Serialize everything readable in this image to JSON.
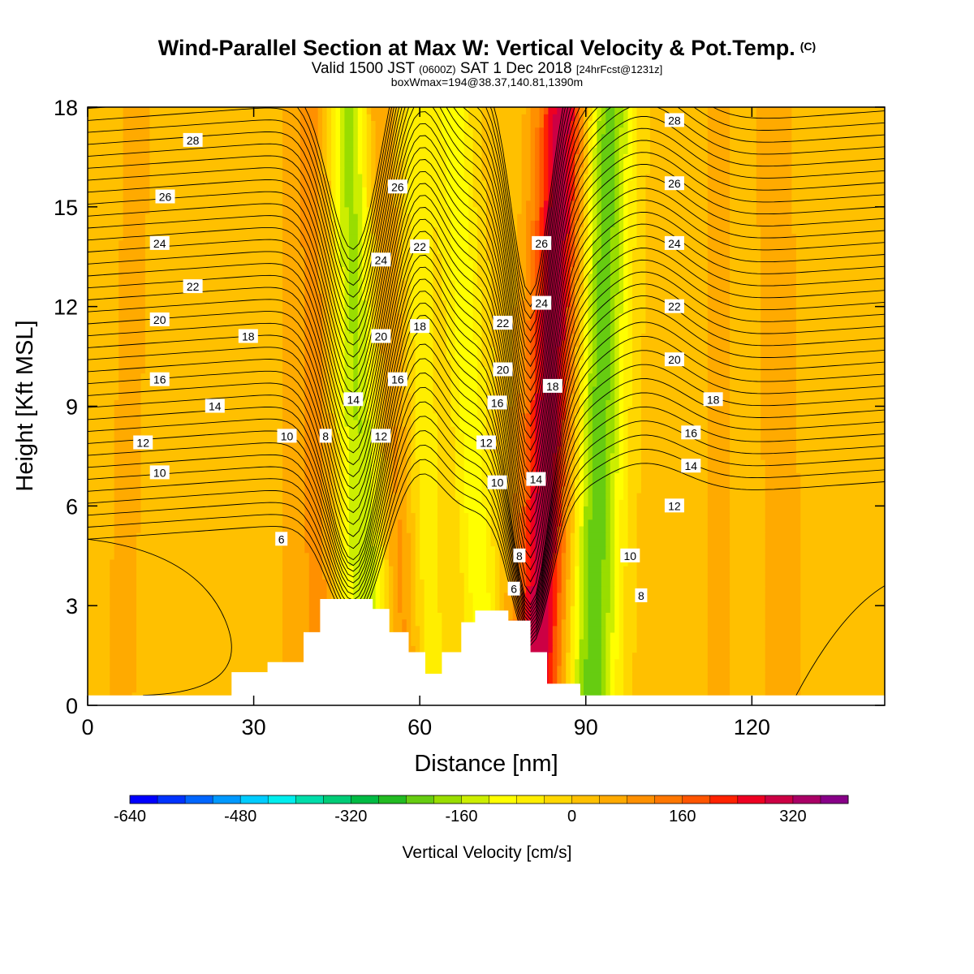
{
  "header": {
    "title": "Wind-Parallel Section at Max W: Vertical Velocity & Pot.Temp.",
    "title_mark": "(C)",
    "valid_prefix": "Valid 1500 JST",
    "valid_utc": "(0600Z)",
    "valid_date": "SAT 1 Dec 2018",
    "forecast": "[24hrFcst@1231z]",
    "box_info": "boxWmax=194@38.37,140.81,1390m"
  },
  "chart_data": {
    "type": "heatmap",
    "xlabel": "Distance [nm]",
    "ylabel": "Height [Kft MSL]",
    "xlim": [
      0,
      144
    ],
    "ylim": [
      0,
      18
    ],
    "xticks": [
      0,
      30,
      60,
      90,
      120
    ],
    "yticks": [
      0,
      3,
      6,
      9,
      12,
      15,
      18
    ],
    "grid": false,
    "colorbar": {
      "title": "Vertical Velocity [cm/s]",
      "placement": "bottom",
      "min": -640,
      "max": 400,
      "step": 40,
      "tick_labels": [
        -640,
        -480,
        -320,
        -160,
        0,
        160,
        320
      ],
      "colors": [
        "#0000ff",
        "#0033ff",
        "#0066ff",
        "#0099ff",
        "#00ccff",
        "#00eeee",
        "#00ddaa",
        "#00cc77",
        "#00bb44",
        "#22bb22",
        "#66cc11",
        "#99dd00",
        "#ccee00",
        "#ffff00",
        "#ffee00",
        "#ffd700",
        "#ffc000",
        "#ffaa00",
        "#ff9000",
        "#ff7700",
        "#ff5500",
        "#ff2200",
        "#ee0022",
        "#cc0044",
        "#aa0066",
        "#880088"
      ]
    },
    "vertical_velocity_bands": [
      {
        "base_x": 6,
        "top_x": 9,
        "w": 40
      },
      {
        "base_x": 38,
        "top_x": 38,
        "w": 40
      },
      {
        "base_x": 43,
        "top_x": 42,
        "w": 80
      },
      {
        "base_x": 47,
        "top_x": 46,
        "w": -60
      },
      {
        "base_x": 52,
        "top_x": 48,
        "w": -160
      },
      {
        "base_x": 57,
        "top_x": 52,
        "w": 120
      },
      {
        "base_x": 62,
        "top_x": 59,
        "w": -80
      },
      {
        "base_x": 72,
        "top_x": 66,
        "w": -120
      },
      {
        "base_x": 81,
        "top_x": 86,
        "w": 300
      },
      {
        "base_x": 91,
        "top_x": 94,
        "w": -240
      },
      {
        "base_x": 114,
        "top_x": 114,
        "w": 40
      },
      {
        "base_x": 126,
        "top_x": 124,
        "w": 60
      }
    ],
    "terrain_profile": [
      {
        "x": 0,
        "h": 0.3
      },
      {
        "x": 26,
        "h": 0.3
      },
      {
        "x": 26,
        "h": 1.0
      },
      {
        "x": 32.5,
        "h": 1.0
      },
      {
        "x": 32.5,
        "h": 1.3
      },
      {
        "x": 39,
        "h": 1.3
      },
      {
        "x": 39,
        "h": 2.2
      },
      {
        "x": 42,
        "h": 2.2
      },
      {
        "x": 42,
        "h": 3.2
      },
      {
        "x": 51.5,
        "h": 3.2
      },
      {
        "x": 51.5,
        "h": 2.9
      },
      {
        "x": 54.5,
        "h": 2.9
      },
      {
        "x": 54.5,
        "h": 2.2
      },
      {
        "x": 58,
        "h": 2.2
      },
      {
        "x": 58,
        "h": 1.6
      },
      {
        "x": 61,
        "h": 1.6
      },
      {
        "x": 61,
        "h": 0.95
      },
      {
        "x": 64,
        "h": 0.95
      },
      {
        "x": 64,
        "h": 1.6
      },
      {
        "x": 67.5,
        "h": 1.6
      },
      {
        "x": 67.5,
        "h": 2.5
      },
      {
        "x": 70,
        "h": 2.5
      },
      {
        "x": 70,
        "h": 2.85
      },
      {
        "x": 76,
        "h": 2.85
      },
      {
        "x": 76,
        "h": 2.55
      },
      {
        "x": 80,
        "h": 2.55
      },
      {
        "x": 80,
        "h": 1.6
      },
      {
        "x": 83,
        "h": 1.6
      },
      {
        "x": 83,
        "h": 0.65
      },
      {
        "x": 89,
        "h": 0.65
      },
      {
        "x": 89,
        "h": 0.3
      },
      {
        "x": 144,
        "h": 0.3
      }
    ],
    "theta_contour_labels": [
      {
        "x": 19,
        "y": 17.0,
        "text": "28"
      },
      {
        "x": 14,
        "y": 15.3,
        "text": "26"
      },
      {
        "x": 13,
        "y": 13.9,
        "text": "24"
      },
      {
        "x": 19,
        "y": 12.6,
        "text": "22"
      },
      {
        "x": 13,
        "y": 11.6,
        "text": "20"
      },
      {
        "x": 29,
        "y": 11.1,
        "text": "18"
      },
      {
        "x": 13,
        "y": 9.8,
        "text": "16"
      },
      {
        "x": 23,
        "y": 9.0,
        "text": "14"
      },
      {
        "x": 10,
        "y": 7.9,
        "text": "12"
      },
      {
        "x": 13,
        "y": 7.0,
        "text": "10"
      },
      {
        "x": 35,
        "y": 5.0,
        "text": "6"
      },
      {
        "x": 36,
        "y": 8.1,
        "text": "10"
      },
      {
        "x": 43,
        "y": 8.1,
        "text": "8"
      },
      {
        "x": 48,
        "y": 9.2,
        "text": "14"
      },
      {
        "x": 53,
        "y": 8.1,
        "text": "12"
      },
      {
        "x": 56,
        "y": 9.8,
        "text": "16"
      },
      {
        "x": 53,
        "y": 11.1,
        "text": "20"
      },
      {
        "x": 60,
        "y": 11.4,
        "text": "18"
      },
      {
        "x": 53,
        "y": 13.4,
        "text": "24"
      },
      {
        "x": 60,
        "y": 13.8,
        "text": "22"
      },
      {
        "x": 56,
        "y": 15.6,
        "text": "26"
      },
      {
        "x": 75,
        "y": 11.5,
        "text": "22"
      },
      {
        "x": 75,
        "y": 10.1,
        "text": "20"
      },
      {
        "x": 74,
        "y": 9.1,
        "text": "16"
      },
      {
        "x": 72,
        "y": 7.9,
        "text": "12"
      },
      {
        "x": 74,
        "y": 6.7,
        "text": "10"
      },
      {
        "x": 78,
        "y": 4.5,
        "text": "8"
      },
      {
        "x": 77,
        "y": 3.5,
        "text": "6"
      },
      {
        "x": 81,
        "y": 6.8,
        "text": "14"
      },
      {
        "x": 84,
        "y": 9.6,
        "text": "18"
      },
      {
        "x": 82,
        "y": 12.1,
        "text": "24"
      },
      {
        "x": 82,
        "y": 13.9,
        "text": "26"
      },
      {
        "x": 106,
        "y": 17.6,
        "text": "28"
      },
      {
        "x": 106,
        "y": 15.7,
        "text": "26"
      },
      {
        "x": 106,
        "y": 13.9,
        "text": "24"
      },
      {
        "x": 106,
        "y": 12.0,
        "text": "22"
      },
      {
        "x": 106,
        "y": 10.4,
        "text": "20"
      },
      {
        "x": 113,
        "y": 9.2,
        "text": "18"
      },
      {
        "x": 109,
        "y": 8.2,
        "text": "16"
      },
      {
        "x": 109,
        "y": 7.2,
        "text": "14"
      },
      {
        "x": 106,
        "y": 6.0,
        "text": "12"
      },
      {
        "x": 98,
        "y": 4.5,
        "text": "10"
      },
      {
        "x": 100,
        "y": 3.3,
        "text": "8"
      }
    ]
  }
}
